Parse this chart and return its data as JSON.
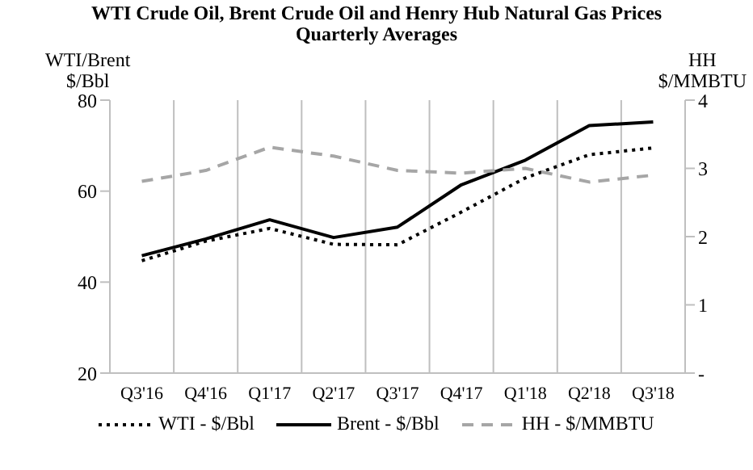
{
  "chart_data": {
    "type": "line",
    "title": "WTI Crude Oil, Brent Crude Oil and Henry Hub Natural Gas Prices",
    "subtitle": "Quarterly Averages",
    "ylabel": "WTI/Brent\n$/Bbl",
    "y2label": "HH\n$/MMBTU",
    "categories": [
      "Q3'16",
      "Q4'16",
      "Q1'17",
      "Q2'17",
      "Q3'17",
      "Q4'17",
      "Q1'18",
      "Q2'18",
      "Q3'18"
    ],
    "series": [
      {
        "name": "WTI - $/Bbl",
        "color": "#000000",
        "line_style": "dotted",
        "values": [
          44.7,
          49.0,
          51.8,
          48.3,
          48.2,
          55.4,
          62.9,
          68.0,
          69.5
        ]
      },
      {
        "name": "Brent - $/Bbl",
        "color": "#000000",
        "line_style": "solid",
        "values": [
          45.8,
          49.5,
          53.7,
          49.8,
          52.1,
          61.4,
          66.8,
          74.4,
          75.2
        ]
      },
      {
        "name": "HH - $/MMBTU",
        "color": "#a6a6a6",
        "line_style": "dashed",
        "axis": "y2",
        "values": [
          2.81,
          2.97,
          3.31,
          3.18,
          2.97,
          2.93,
          3.0,
          2.8,
          2.9
        ]
      }
    ],
    "ylim": [
      20,
      80
    ],
    "yticks": [
      20,
      40,
      60,
      80
    ],
    "y2lim": [
      0,
      4
    ],
    "y2ticks": [
      {
        "value": 0,
        "label": "-"
      },
      1,
      2,
      3,
      4
    ],
    "grid": "x",
    "legend": "bottom",
    "marker": "none"
  }
}
